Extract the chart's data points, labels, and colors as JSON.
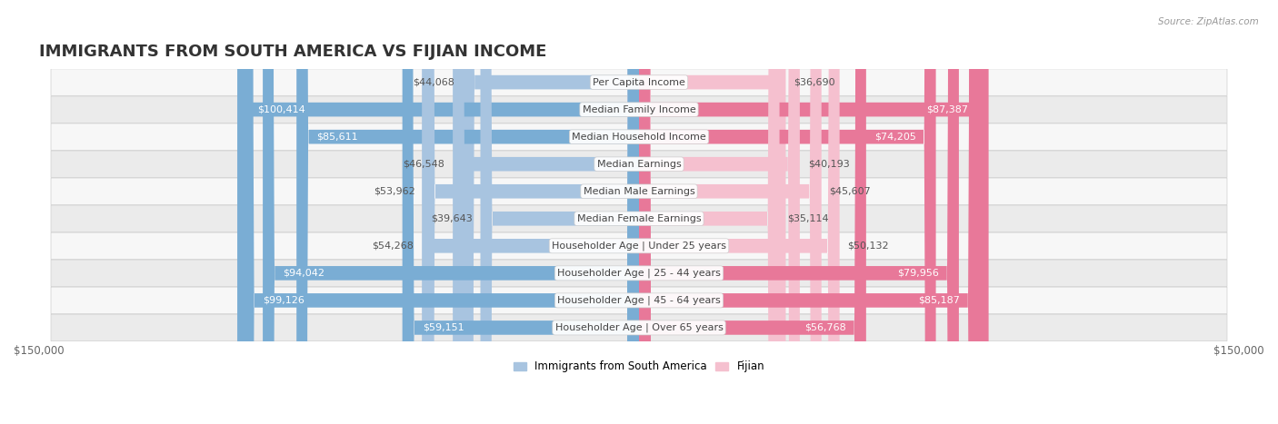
{
  "title": "IMMIGRANTS FROM SOUTH AMERICA VS FIJIAN INCOME",
  "source": "Source: ZipAtlas.com",
  "categories": [
    "Per Capita Income",
    "Median Family Income",
    "Median Household Income",
    "Median Earnings",
    "Median Male Earnings",
    "Median Female Earnings",
    "Householder Age | Under 25 years",
    "Householder Age | 25 - 44 years",
    "Householder Age | 45 - 64 years",
    "Householder Age | Over 65 years"
  ],
  "south_america_values": [
    44068,
    100414,
    85611,
    46548,
    53962,
    39643,
    54268,
    94042,
    99126,
    59151
  ],
  "fijian_values": [
    36690,
    87387,
    74205,
    40193,
    45607,
    35114,
    50132,
    79956,
    85187,
    56768
  ],
  "south_america_labels": [
    "$44,068",
    "$100,414",
    "$85,611",
    "$46,548",
    "$53,962",
    "$39,643",
    "$54,268",
    "$94,042",
    "$99,126",
    "$59,151"
  ],
  "fijian_labels": [
    "$36,690",
    "$87,387",
    "$74,205",
    "$40,193",
    "$45,607",
    "$35,114",
    "$50,132",
    "$79,956",
    "$85,187",
    "$56,768"
  ],
  "sa_color_light": "#a8c4e0",
  "sa_color_dark": "#7aadd4",
  "fj_color_light": "#f5c0cf",
  "fj_color_dark": "#e87899",
  "max_val": 150000,
  "bar_height": 0.52,
  "row_bg_light": "#f5f5f5",
  "row_bg_dark": "#e8e8e8",
  "title_fontsize": 13,
  "axis_label_fontsize": 8.5,
  "bar_label_fontsize": 8,
  "category_fontsize": 8,
  "legend_fontsize": 8.5,
  "source_fontsize": 7.5,
  "inside_threshold": 55000
}
